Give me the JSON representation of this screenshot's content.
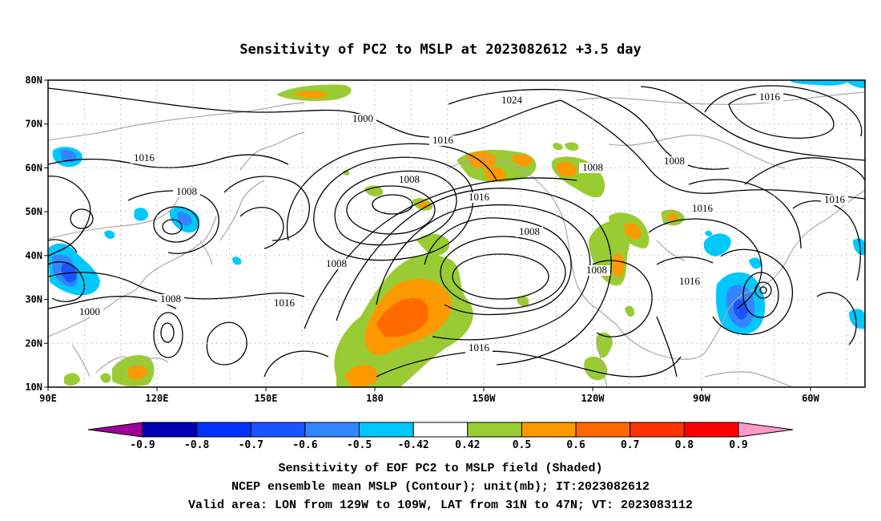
{
  "chart_data": {
    "type": "heatmap",
    "title": "Sensitivity of PC2 to MSLP at 2023082612 +3.5 day",
    "x_ticks": [
      "90E",
      "120E",
      "150E",
      "180",
      "150W",
      "120W",
      "90W",
      "60W"
    ],
    "y_ticks": [
      "10N",
      "20N",
      "30N",
      "40N",
      "50N",
      "60N",
      "70N",
      "80N"
    ],
    "xlim_lon_east": [
      90,
      315
    ],
    "ylim_lat": [
      10,
      80
    ],
    "grid": "dotted",
    "colorbar": {
      "ticks": [
        "-0.9",
        "-0.8",
        "-0.7",
        "-0.6",
        "-0.5",
        "-0.42",
        "0.42",
        "0.5",
        "0.6",
        "0.7",
        "0.8",
        "0.9"
      ],
      "colors": [
        "#a0009a",
        "#0000b4",
        "#0033ff",
        "#1a53ff",
        "#3385ff",
        "#00c8ff",
        "#ffffff",
        "#99cc33",
        "#ff9900",
        "#ff6a00",
        "#ff3300",
        "#ff0000",
        "#ff99cc"
      ]
    },
    "contour_labels": [
      "1016",
      "1008",
      "1000",
      "1008",
      "1016",
      "1008",
      "1000",
      "1016",
      "1008",
      "1016",
      "1024",
      "1008",
      "1008",
      "1008",
      "1016",
      "1008",
      "1016",
      "1016",
      "1016",
      "1016"
    ],
    "caption": [
      "Sensitivity of EOF PC2 to MSLP field (Shaded)",
      "NCEP ensemble mean MSLP (Contour); unit(mb); IT:2023082612",
      "Valid area: LON from 129W to 109W, LAT from 31N to 47N; VT: 2023083112"
    ]
  }
}
